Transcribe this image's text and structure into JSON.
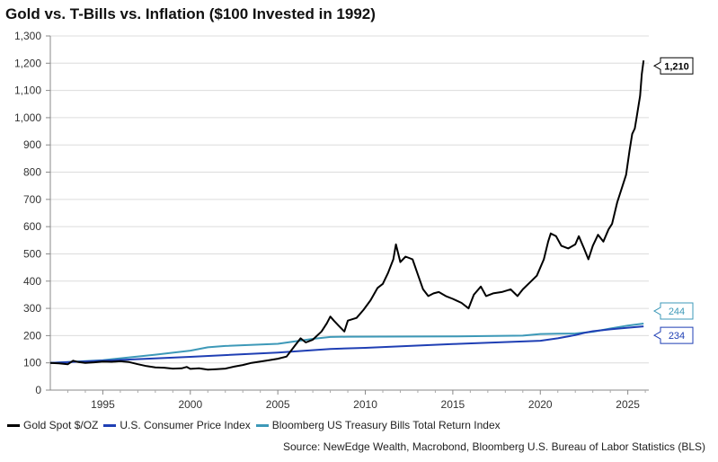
{
  "chart_data": {
    "type": "line",
    "title": "Gold vs. T-Bills vs. Inflation ($100 Invested in 1992)",
    "xlabel": "",
    "ylabel": "",
    "xlim": [
      1992.0,
      2026.2
    ],
    "ylim": [
      0,
      1300
    ],
    "x_ticks": [
      1995,
      2000,
      2005,
      2010,
      2015,
      2020,
      2025
    ],
    "y_ticks": [
      0,
      100,
      200,
      300,
      400,
      500,
      600,
      700,
      800,
      900,
      1000,
      1100,
      1200,
      1300
    ],
    "y_tick_labels": [
      "0",
      "100",
      "200",
      "300",
      "400",
      "500",
      "600",
      "700",
      "800",
      "900",
      "1,000",
      "1,100",
      "1,200",
      "1,300"
    ],
    "x_tick_labels": [
      "1995",
      "2000",
      "2005",
      "2010",
      "2015",
      "2020",
      "2025"
    ],
    "grid": "horizontal",
    "legend_position": "bottom",
    "series": [
      {
        "name": "Gold Spot $/OZ",
        "color": "#000000",
        "end_label": "1,210",
        "x": [
          1992.0,
          1992.5,
          1993.0,
          1993.3,
          1993.6,
          1994.0,
          1994.5,
          1995.0,
          1995.5,
          1996.0,
          1996.5,
          1997.0,
          1997.5,
          1998.0,
          1998.5,
          1999.0,
          1999.5,
          1999.8,
          2000.0,
          2000.5,
          2001.0,
          2001.5,
          2002.0,
          2002.5,
          2003.0,
          2003.5,
          2004.0,
          2004.5,
          2005.0,
          2005.5,
          2006.0,
          2006.3,
          2006.6,
          2007.0,
          2007.5,
          2007.8,
          2008.0,
          2008.2,
          2008.5,
          2008.8,
          2009.0,
          2009.5,
          2009.9,
          2010.3,
          2010.7,
          2011.0,
          2011.3,
          2011.6,
          2011.75,
          2012.0,
          2012.3,
          2012.7,
          2013.0,
          2013.3,
          2013.6,
          2013.9,
          2014.2,
          2014.6,
          2015.0,
          2015.5,
          2015.9,
          2016.2,
          2016.6,
          2016.9,
          2017.3,
          2017.8,
          2018.3,
          2018.7,
          2019.0,
          2019.4,
          2019.8,
          2020.2,
          2020.45,
          2020.6,
          2020.9,
          2021.2,
          2021.6,
          2022.0,
          2022.2,
          2022.5,
          2022.75,
          2023.0,
          2023.3,
          2023.6,
          2023.9,
          2024.1,
          2024.4,
          2024.7,
          2024.9,
          2025.1,
          2025.25,
          2025.4,
          2025.5,
          2025.7,
          2025.8,
          2025.9
        ],
        "y": [
          100,
          98,
          95,
          108,
          103,
          100,
          102,
          105,
          104,
          106,
          103,
          95,
          88,
          83,
          82,
          79,
          80,
          85,
          78,
          80,
          75,
          77,
          79,
          86,
          92,
          100,
          105,
          110,
          115,
          123,
          165,
          190,
          175,
          185,
          215,
          245,
          270,
          255,
          235,
          215,
          255,
          265,
          295,
          330,
          375,
          390,
          430,
          480,
          535,
          470,
          490,
          480,
          425,
          370,
          345,
          355,
          360,
          345,
          335,
          320,
          300,
          350,
          380,
          345,
          355,
          360,
          370,
          345,
          370,
          395,
          420,
          480,
          545,
          575,
          565,
          530,
          520,
          535,
          565,
          520,
          480,
          530,
          570,
          545,
          590,
          610,
          690,
          750,
          790,
          880,
          940,
          960,
          1000,
          1080,
          1160,
          1210
        ]
      },
      {
        "name": "U.S. Consumer Price Index",
        "color": "#1f3fb4",
        "end_label": "234",
        "x": [
          1992,
          1995,
          2000,
          2005,
          2008,
          2010,
          2015,
          2020,
          2021,
          2022,
          2022.5,
          2023,
          2024,
          2025,
          2025.9
        ],
        "y": [
          100,
          108,
          122,
          138,
          151,
          155,
          169,
          181,
          190,
          202,
          210,
          216,
          223,
          229,
          234
        ]
      },
      {
        "name": "Bloomberg US Treasury Bills Total Return Index",
        "color": "#3d99b8",
        "end_label": "244",
        "x": [
          1992,
          1995,
          1998,
          2000,
          2001,
          2002,
          2005,
          2007,
          2008,
          2009,
          2015,
          2019,
          2020,
          2021,
          2022,
          2023,
          2024,
          2025,
          2025.9
        ],
        "y": [
          100,
          110,
          130,
          145,
          157,
          162,
          170,
          188,
          195,
          196,
          197,
          200,
          206,
          207,
          208,
          214,
          226,
          237,
          244
        ]
      }
    ]
  },
  "footer": {
    "source": "Source: NewEdge Wealth, Macrobond, Bloomberg U.S. Bureau of Labor Statistics (BLS)"
  }
}
